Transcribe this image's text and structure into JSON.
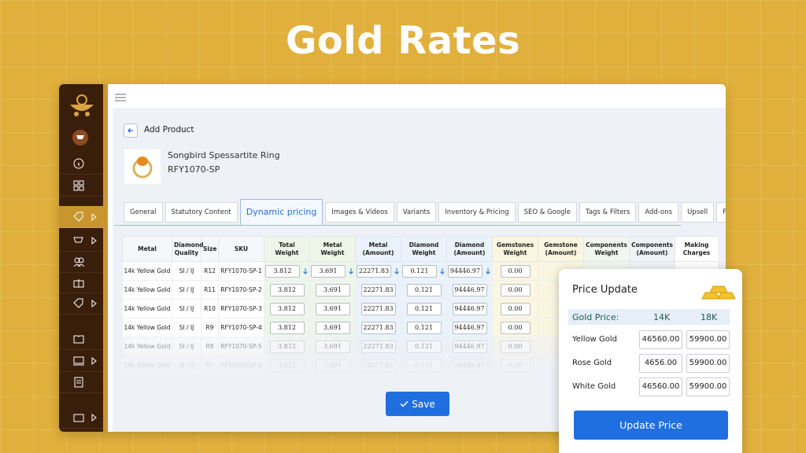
{
  "header": {
    "title": "Gold Rates"
  },
  "page": {
    "back_label": "Add Product",
    "product_name": "Songbird Spessartite Ring",
    "product_sku": "RFY1070-SP"
  },
  "tabs": [
    "General",
    "Statutory Content",
    "Dynamic pricing",
    "Images & Videos",
    "Variants",
    "Inventory & Pricing",
    "SEO & Google",
    "Tags & Filters",
    "Add-ons",
    "Upsell",
    "Faqs"
  ],
  "table": {
    "columns": [
      "Metal",
      "Diamond Quality",
      "Size",
      "SKU",
      "Total Weight",
      "Metal Weight",
      "Metal (Amount)",
      "Diamond Weight",
      "Diamond (Amount)",
      "Gemstones Weight",
      "Gemstone (Amount)",
      "Components Weight",
      "Components (Amount)",
      "Making Charges"
    ],
    "rows": [
      [
        "14k Yellow Gold",
        "SI / IJ",
        "R12",
        "RFY1070-SP-1",
        "3.812",
        "3.691",
        "22271.83",
        "0.121",
        "94446.97",
        "0.00"
      ],
      [
        "14k Yellow Gold",
        "SI / IJ",
        "R11",
        "RFY1070-SP-2",
        "3.812",
        "3.691",
        "22271.83",
        "0.121",
        "94446.97",
        "0.00"
      ],
      [
        "14k Yellow Gold",
        "SI / IJ",
        "R10",
        "RFY1070-SP-3",
        "3.812",
        "3.691",
        "22271.83",
        "0.121",
        "94446.97",
        "0.00"
      ],
      [
        "14k Yellow Gold",
        "SI / IJ",
        "R9",
        "RFY1070-SP-4",
        "3.812",
        "3.691",
        "22271.83",
        "0.121",
        "94446.97",
        "0.00"
      ],
      [
        "14k Yellow Gold",
        "SI / IJ",
        "R8",
        "RFY1070-SP-5",
        "3.812",
        "3.691",
        "22271.83",
        "0.121",
        "94446.97",
        "0.00"
      ],
      [
        "14k Yellow Gold",
        "SI / IJ",
        "R7",
        "RFY1070-SP-6",
        "3.812",
        "3.691",
        "22271.83",
        "0.121",
        "94446.97",
        "0.00"
      ]
    ]
  },
  "save_button": "Save",
  "price_update": {
    "title": "Price Update",
    "header": [
      "Gold Price:",
      "14K",
      "18K"
    ],
    "rows": [
      [
        "Yellow Gold",
        "46560.00",
        "59900.00"
      ],
      [
        "Rose Gold",
        "4656.00",
        "59900.00"
      ],
      [
        "White Gold",
        "46560.00",
        "59900.00"
      ]
    ],
    "button": "Update Price"
  }
}
